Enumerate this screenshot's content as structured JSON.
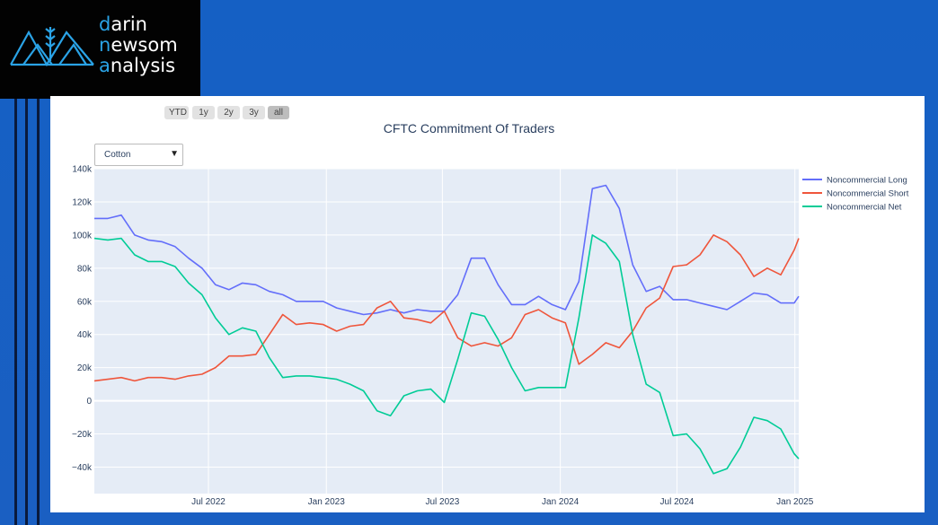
{
  "brand": {
    "lines": [
      {
        "accent": "d",
        "rest": "arin"
      },
      {
        "accent": "n",
        "rest": "ewsom"
      },
      {
        "accent": "a",
        "rest": "nalysis"
      }
    ]
  },
  "range_buttons": [
    {
      "label": "YTD",
      "active": false
    },
    {
      "label": "1y",
      "active": false
    },
    {
      "label": "2y",
      "active": false
    },
    {
      "label": "3y",
      "active": false
    },
    {
      "label": "all",
      "active": true
    }
  ],
  "dropdown": {
    "selected": "Cotton"
  },
  "colors": {
    "long": "#636efa",
    "short": "#ef553b",
    "net": "#00cc96",
    "plot_bg": "#e5ecf6"
  },
  "chart_data": {
    "type": "line",
    "title": "CFTC Commitment Of Traders",
    "xlabel": "",
    "ylabel": "",
    "x_range": [
      "2022-01-04",
      "2025-01-07"
    ],
    "ylim": [
      -56000,
      140000
    ],
    "y_ticks": [
      140000,
      120000,
      100000,
      80000,
      60000,
      40000,
      20000,
      0,
      -20000,
      -40000
    ],
    "y_tick_labels": [
      "140k",
      "120k",
      "100k",
      "80k",
      "60k",
      "40k",
      "20k",
      "0",
      "−20k",
      "−40k"
    ],
    "x_ticks": [
      "2022-07-01",
      "2023-01-01",
      "2023-07-01",
      "2024-01-01",
      "2024-07-01",
      "2025-01-01"
    ],
    "x_tick_labels": [
      "Jul 2022",
      "Jan 2023",
      "Jul 2023",
      "Jan 2024",
      "Jul 2024",
      "Jan 2025"
    ],
    "grid": true,
    "legend": "top-right",
    "x": [
      "2022-01-04",
      "2022-01-25",
      "2022-02-15",
      "2022-03-08",
      "2022-03-29",
      "2022-04-19",
      "2022-05-10",
      "2022-05-31",
      "2022-06-21",
      "2022-07-12",
      "2022-08-02",
      "2022-08-23",
      "2022-09-13",
      "2022-10-04",
      "2022-10-25",
      "2022-11-15",
      "2022-12-06",
      "2022-12-27",
      "2023-01-17",
      "2023-02-07",
      "2023-02-28",
      "2023-03-21",
      "2023-04-11",
      "2023-05-02",
      "2023-05-23",
      "2023-06-13",
      "2023-07-04",
      "2023-07-25",
      "2023-08-15",
      "2023-09-05",
      "2023-09-26",
      "2023-10-17",
      "2023-11-07",
      "2023-11-28",
      "2023-12-19",
      "2024-01-09",
      "2024-01-30",
      "2024-02-20",
      "2024-03-12",
      "2024-04-02",
      "2024-04-23",
      "2024-05-14",
      "2024-06-04",
      "2024-06-25",
      "2024-07-16",
      "2024-08-06",
      "2024-08-27",
      "2024-09-17",
      "2024-10-08",
      "2024-10-29",
      "2024-11-19",
      "2024-12-10",
      "2024-12-31",
      "2025-01-07"
    ],
    "series": [
      {
        "name": "Noncommercial Long",
        "values": [
          110000,
          110000,
          112000,
          100000,
          97000,
          96000,
          93000,
          86000,
          80000,
          70000,
          67000,
          71000,
          70000,
          66000,
          64000,
          60000,
          60000,
          60000,
          56000,
          54000,
          52000,
          53000,
          55000,
          53000,
          55000,
          54000,
          54000,
          64000,
          86000,
          86000,
          70000,
          58000,
          58000,
          63000,
          58000,
          55000,
          72000,
          128000,
          130000,
          116000,
          82000,
          66000,
          69000,
          61000,
          61000,
          59000,
          57000,
          55000,
          60000,
          65000,
          64000,
          59000,
          59000,
          63000
        ]
      },
      {
        "name": "Noncommercial Short",
        "values": [
          12000,
          13000,
          14000,
          12000,
          14000,
          14000,
          13000,
          15000,
          16000,
          20000,
          27000,
          27000,
          28000,
          40000,
          52000,
          46000,
          47000,
          46000,
          42000,
          45000,
          46000,
          56000,
          60000,
          50000,
          49000,
          47000,
          54000,
          38000,
          33000,
          35000,
          33000,
          38000,
          52000,
          55000,
          50000,
          47000,
          22000,
          28000,
          35000,
          32000,
          42000,
          56000,
          62000,
          81000,
          82000,
          88000,
          100000,
          96000,
          88000,
          75000,
          80000,
          76000,
          91000,
          98000
        ]
      },
      {
        "name": "Noncommercial Net",
        "values": [
          98000,
          97000,
          98000,
          88000,
          84000,
          84000,
          81000,
          71000,
          64000,
          50000,
          40000,
          44000,
          42000,
          26000,
          14000,
          15000,
          15000,
          14000,
          13000,
          10000,
          6000,
          -6000,
          -9000,
          3000,
          6000,
          7000,
          -1000,
          25000,
          53000,
          51000,
          37000,
          20000,
          6000,
          8000,
          8000,
          8000,
          50000,
          100000,
          95000,
          84000,
          40000,
          10000,
          5000,
          -21000,
          -20000,
          -29000,
          -44000,
          -41000,
          -28000,
          -10000,
          -12000,
          -17000,
          -32000,
          -35000
        ]
      }
    ]
  }
}
